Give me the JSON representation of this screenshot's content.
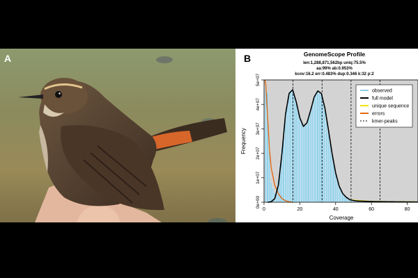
{
  "panel_a_label": "A",
  "panel_b_label": "B",
  "photo_subject": "bird-in-hand-photo",
  "colors": {
    "observed": "#8ecfe8",
    "full_model": "#000000",
    "unique_sequence": "#f2e600",
    "errors": "#e26b14",
    "kmer_peaks": "#000000",
    "plot_background": "#d3d3d3"
  },
  "chart_data": {
    "type": "line",
    "title": "GenomeScope Profile",
    "subtitle_lines": [
      "len:1,288,871,562bp uniq:75.5%",
      "aa:99% ab:0.953%",
      "kcov:16.2 err:0.483% dup:0.346 k:32 p:2"
    ],
    "xlabel": "Coverage",
    "ylabel": "Frequency",
    "xlim": [
      0,
      86
    ],
    "ylim": [
      0,
      50000000
    ],
    "x_ticks": [
      0,
      20,
      40,
      60,
      80
    ],
    "x_tick_labels": [
      "0",
      "20",
      "40",
      "60",
      "80"
    ],
    "y_ticks": [
      0,
      10000000,
      20000000,
      30000000,
      40000000,
      50000000
    ],
    "y_tick_labels": [
      "0e+00",
      "1e+07",
      "2e+07",
      "3e+07",
      "4e+07",
      "5e+07"
    ],
    "legend": {
      "placement": "top-right",
      "entries": [
        "observed",
        "full model",
        "unique sequence",
        "errors",
        "kmer-peaks"
      ]
    },
    "kmer_peaks": [
      16.2,
      32.4,
      48.6,
      64.8
    ],
    "series": [
      {
        "name": "observed",
        "style": "histogram",
        "x": [
          0,
          2,
          4,
          6,
          8,
          10,
          12,
          14,
          16,
          18,
          20,
          22,
          24,
          26,
          28,
          30,
          32,
          34,
          36,
          38,
          40,
          42,
          44,
          46,
          48,
          50,
          52,
          56,
          60,
          70,
          86
        ],
        "values": [
          50000000,
          45000000,
          8000000,
          4000000,
          9000000,
          22000000,
          37000000,
          45000000,
          46000000,
          41000000,
          34500000,
          31000000,
          32000000,
          37000000,
          43000000,
          45500000,
          44000000,
          38000000,
          29000000,
          20000000,
          12000000,
          6500000,
          3500000,
          2000000,
          1000000,
          700000,
          500000,
          400000,
          300000,
          200000,
          100000
        ]
      },
      {
        "name": "full model",
        "x": [
          2,
          4,
          6,
          8,
          10,
          12,
          14,
          16,
          18,
          20,
          22,
          24,
          26,
          28,
          30,
          32,
          34,
          36,
          38,
          40,
          42,
          44,
          46,
          48,
          50,
          52,
          56,
          60,
          70,
          86
        ],
        "values": [
          0,
          200000,
          1500000,
          7000000,
          20000000,
          36000000,
          44500000,
          46000000,
          41000000,
          34500000,
          31000000,
          32500000,
          37500000,
          43000000,
          45500000,
          44500000,
          38500000,
          29500000,
          20000000,
          12000000,
          6500000,
          3500000,
          2000000,
          1000000,
          700000,
          500000,
          400000,
          300000,
          200000,
          100000
        ]
      },
      {
        "name": "unique sequence",
        "x": [
          48,
          52,
          56,
          60,
          70,
          86
        ],
        "values": [
          1000000,
          700000,
          500000,
          350000,
          200000,
          100000
        ]
      },
      {
        "name": "errors",
        "x": [
          0.5,
          1,
          2,
          3,
          4,
          6,
          8,
          10,
          12,
          14,
          16
        ],
        "values": [
          50000000,
          48000000,
          35000000,
          22000000,
          14000000,
          7000000,
          3500000,
          1500000,
          600000,
          200000,
          0
        ]
      }
    ]
  }
}
